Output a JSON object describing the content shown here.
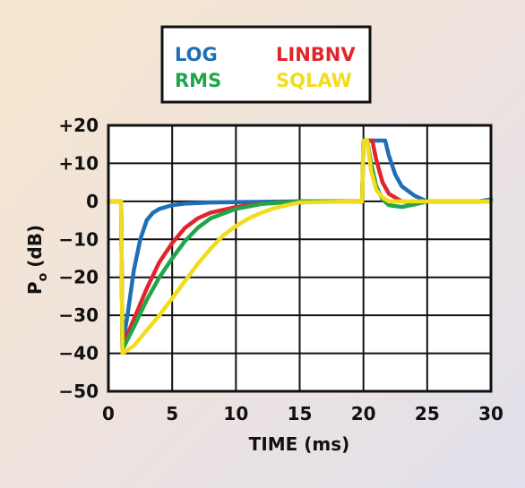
{
  "chart_data": {
    "type": "line",
    "xlabel": "TIME (ms)",
    "ylabel_main": "P",
    "ylabel_sub": "o",
    "ylabel_unit": "(dB)",
    "xlim": [
      0,
      30
    ],
    "ylim": [
      -50,
      20
    ],
    "x_ticks": [
      0,
      5,
      10,
      15,
      20,
      25,
      30
    ],
    "y_ticks": [
      20,
      10,
      0,
      -10,
      -20,
      -30,
      -40,
      -50
    ],
    "x_tick_labels": [
      "0",
      "5",
      "10",
      "15",
      "20",
      "25",
      "30"
    ],
    "y_tick_labels": [
      "+20",
      "+10",
      "0",
      "−10",
      "−20",
      "−30",
      "−40",
      "−50"
    ],
    "grid": true,
    "legend_position": "top-center",
    "series": [
      {
        "name": "LOG",
        "color": "#1e6fb8",
        "x": [
          0,
          1,
          1.1,
          1.5,
          2,
          2.5,
          3,
          3.5,
          4,
          5,
          6,
          8,
          10,
          15,
          19.9,
          20,
          20.5,
          21,
          21.5,
          21.7,
          22,
          22.5,
          23,
          24,
          25,
          27,
          29,
          30
        ],
        "y": [
          0,
          0,
          -38,
          -30,
          -18,
          -10,
          -5,
          -3,
          -2,
          -1,
          -0.6,
          -0.3,
          -0.2,
          0,
          0,
          16,
          16,
          16,
          16,
          16,
          12,
          7,
          4,
          1.5,
          0,
          0,
          0,
          0.5
        ]
      },
      {
        "name": "LINBNV",
        "color": "#e0262c",
        "x": [
          0,
          1,
          1.1,
          2,
          3,
          4,
          5,
          6,
          7,
          8,
          10,
          12,
          15,
          19.9,
          20,
          20.3,
          20.7,
          21,
          21.5,
          22,
          23,
          24,
          25,
          30
        ],
        "y": [
          0,
          0,
          -38,
          -31,
          -23,
          -16,
          -11,
          -7,
          -4.5,
          -3,
          -1.5,
          -0.6,
          0,
          0,
          16,
          16,
          16,
          11,
          5,
          2,
          0,
          -0.3,
          0,
          0
        ]
      },
      {
        "name": "RMS",
        "color": "#1fa64a",
        "x": [
          0,
          1,
          1.1,
          2,
          3,
          4,
          5,
          6,
          7,
          8,
          10,
          12,
          15,
          19.9,
          20,
          20.3,
          20.6,
          21,
          21.5,
          22,
          23,
          24,
          25,
          30
        ],
        "y": [
          0,
          0,
          -39,
          -33,
          -26,
          -20,
          -15,
          -10.5,
          -7,
          -4.5,
          -2,
          -0.7,
          0,
          0,
          16,
          16,
          10,
          4,
          0.5,
          -1,
          -1.5,
          -0.8,
          0,
          0
        ]
      },
      {
        "name": "SQLAW",
        "color": "#f2dc1c",
        "x": [
          0,
          1,
          1.1,
          2,
          3,
          4,
          5,
          6,
          7,
          8,
          9,
          10,
          11,
          12,
          13,
          14,
          15,
          19.9,
          20,
          20.3,
          20.6,
          21,
          21.5,
          22,
          23,
          25,
          30
        ],
        "y": [
          0,
          0,
          -40,
          -38,
          -34,
          -30,
          -25.5,
          -21,
          -16.5,
          -12.5,
          -9,
          -6.5,
          -4.5,
          -3,
          -1.8,
          -1,
          -0.3,
          0,
          16,
          16,
          8,
          3,
          1,
          0,
          0,
          0,
          0
        ]
      }
    ]
  }
}
